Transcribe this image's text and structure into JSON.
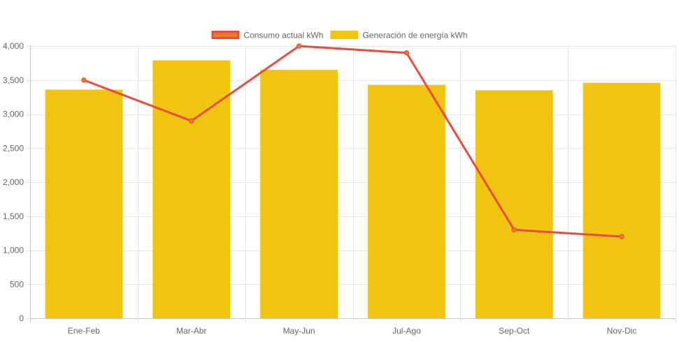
{
  "chart_data": {
    "type": "bar",
    "categories": [
      "Ene-Feb",
      "Mar-Abr",
      "May-Jun",
      "Jul-Ago",
      "Sep-Oct",
      "Nov-Dic"
    ],
    "series": [
      {
        "name": "Generación de energía kWh",
        "type": "bar",
        "values": [
          3360,
          3790,
          3650,
          3430,
          3350,
          3460
        ],
        "color": "#f1c40f"
      },
      {
        "name": "Consumo actual kWh",
        "type": "line",
        "values": [
          3500,
          2900,
          4000,
          3900,
          1300,
          1200
        ],
        "color": "#e74c3c",
        "point_fill": "#e67e22"
      }
    ],
    "legend_order": [
      1,
      0
    ],
    "legend_position": "top",
    "ylim": [
      0,
      4000
    ],
    "yticks": [
      0,
      500,
      1000,
      1500,
      2000,
      2500,
      3000,
      3500,
      4000
    ],
    "ytick_labels": [
      "0",
      "500",
      "1,000",
      "1,500",
      "2,000",
      "2,500",
      "3,000",
      "3,500",
      "4,000"
    ],
    "grid": true,
    "title": "",
    "xlabel": "",
    "ylabel": ""
  }
}
